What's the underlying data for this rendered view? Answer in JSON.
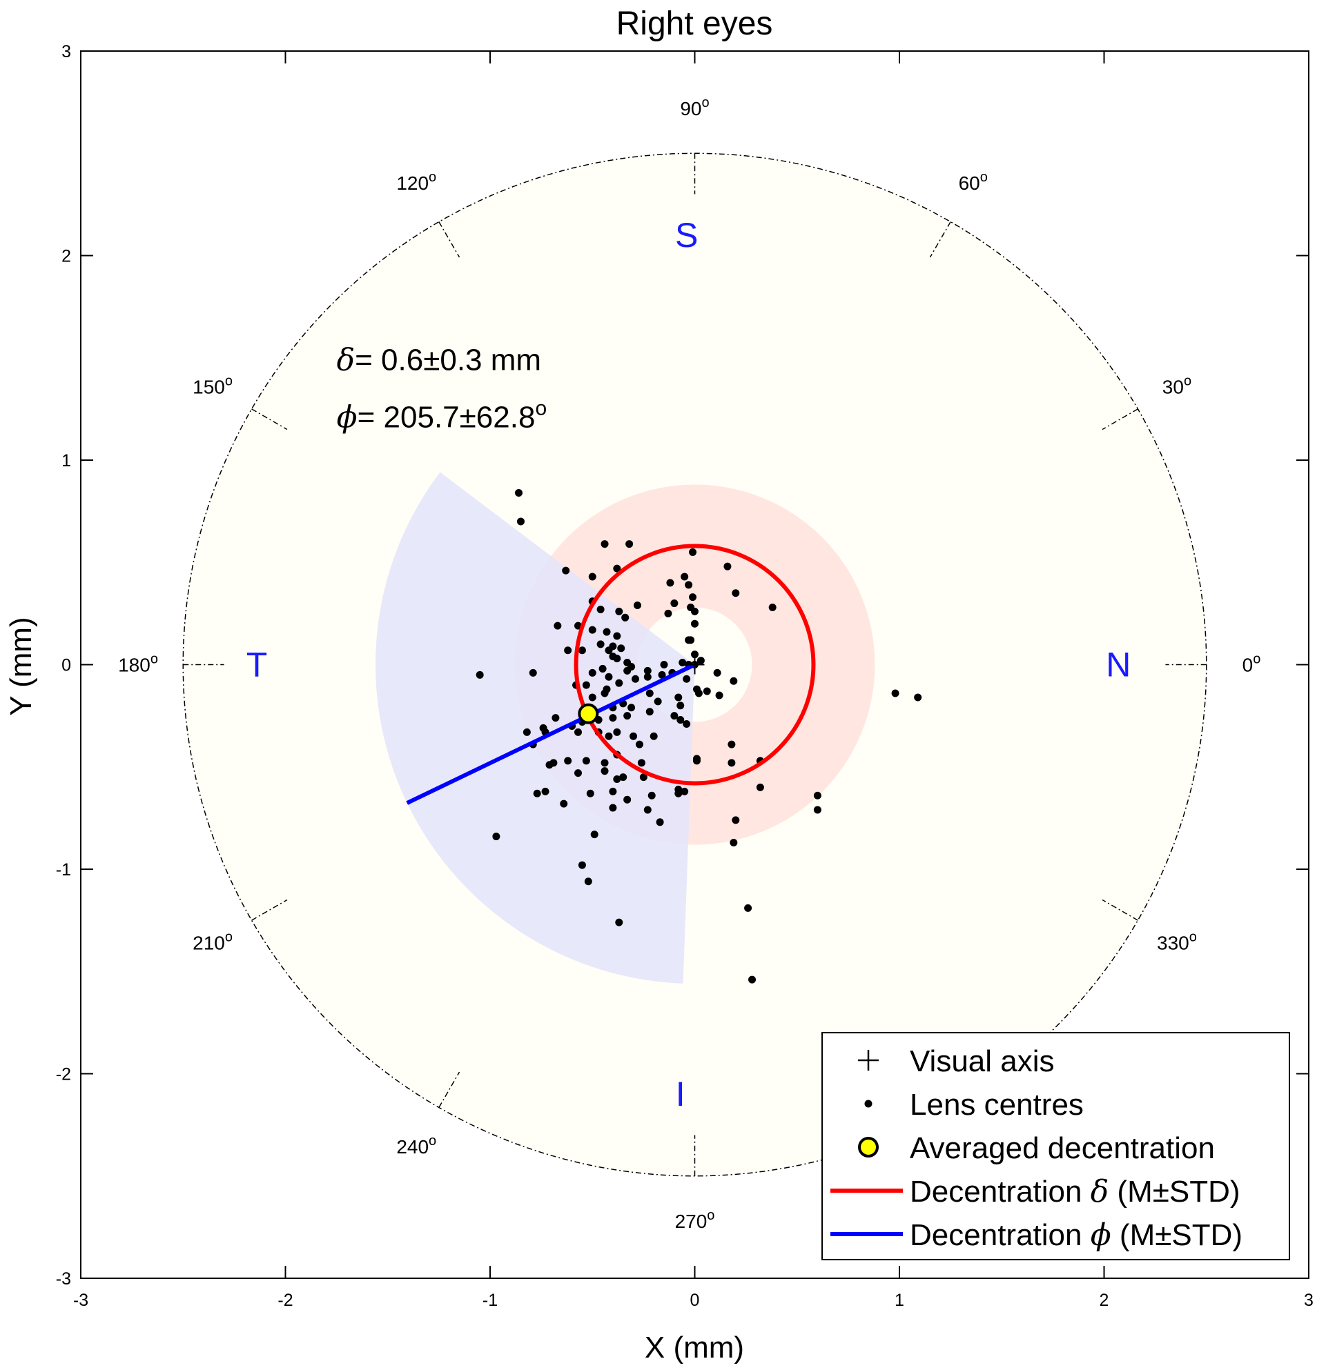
{
  "chart_data": {
    "type": "scatter",
    "title": "Right eyes",
    "xlabel": "X (mm)",
    "ylabel": "Y (mm)",
    "xlim": [
      -3,
      3
    ],
    "ylim": [
      -3,
      3
    ],
    "xticks": [
      -3,
      -2,
      -1,
      0,
      1,
      2,
      3
    ],
    "yticks": [
      -3,
      -2,
      -1,
      0,
      1,
      2,
      3
    ],
    "xtick_labels": [
      "-3",
      "-2",
      "-1",
      "0",
      "1",
      "2",
      "3"
    ],
    "ytick_labels": [
      "-3",
      "-2",
      "-1",
      "0",
      "1",
      "2",
      "3"
    ],
    "outer_circle_radius": 2.5,
    "angle_ticks": [
      {
        "angle": 0,
        "label": "0",
        "sup": "o"
      },
      {
        "angle": 30,
        "label": "30",
        "sup": "o"
      },
      {
        "angle": 60,
        "label": "60",
        "sup": "o"
      },
      {
        "angle": 90,
        "label": "90",
        "sup": "o"
      },
      {
        "angle": 120,
        "label": "120",
        "sup": "o"
      },
      {
        "angle": 150,
        "label": "150",
        "sup": "o"
      },
      {
        "angle": 180,
        "label": "180",
        "sup": "o"
      },
      {
        "angle": 210,
        "label": "210",
        "sup": "o"
      },
      {
        "angle": 240,
        "label": "240",
        "sup": "o"
      },
      {
        "angle": 270,
        "label": "270",
        "sup": "o"
      },
      {
        "angle": 330,
        "label": "330",
        "sup": "o"
      }
    ],
    "direction_labels": [
      {
        "label": "S",
        "x": -0.04,
        "y": 2.1
      },
      {
        "label": "N",
        "x": 2.07,
        "y": 0.0
      },
      {
        "label": "T",
        "x": -2.14,
        "y": 0.0
      },
      {
        "label": "I",
        "x": -0.07,
        "y": -2.1
      }
    ],
    "stats": {
      "delta_symbol": "δ",
      "delta_text": "= 0.6±0.3 mm",
      "phi_symbol": "ϕ",
      "phi_text": "= 205.7±62.8",
      "phi_sup": "o",
      "anchor_x": -1.75,
      "delta_y": 1.49,
      "phi_y": 1.21
    },
    "delta_mean": 0.58,
    "delta_std": 0.3,
    "phi_mean": 205.7,
    "phi_std": 62.8,
    "phi_band_radius": 1.56,
    "averaged_decentration": {
      "x": -0.52,
      "y": -0.24
    },
    "visual_axis": {
      "x": 0,
      "y": 0
    },
    "lens_centres": [
      [
        -0.86,
        0.84
      ],
      [
        -0.85,
        0.7
      ],
      [
        -0.44,
        0.59
      ],
      [
        -0.32,
        0.59
      ],
      [
        -0.63,
        0.46
      ],
      [
        -0.38,
        0.47
      ],
      [
        -0.5,
        0.43
      ],
      [
        -0.5,
        0.31
      ],
      [
        -0.46,
        0.27
      ],
      [
        -0.37,
        0.26
      ],
      [
        -0.34,
        0.23
      ],
      [
        -0.67,
        0.19
      ],
      [
        -0.57,
        0.19
      ],
      [
        -0.5,
        0.17
      ],
      [
        -0.43,
        0.16
      ],
      [
        -0.38,
        0.14
      ],
      [
        -0.46,
        0.1
      ],
      [
        -0.4,
        0.09
      ],
      [
        -0.42,
        0.07
      ],
      [
        -0.36,
        0.08
      ],
      [
        -0.55,
        0.07
      ],
      [
        -0.62,
        0.07
      ],
      [
        -0.4,
        0.04
      ],
      [
        -0.38,
        0.03
      ],
      [
        -0.33,
        0.01
      ],
      [
        -0.31,
        -0.01
      ],
      [
        -0.33,
        -0.03
      ],
      [
        -0.23,
        -0.03
      ],
      [
        -0.23,
        -0.06
      ],
      [
        -0.29,
        -0.07
      ],
      [
        -0.16,
        -0.05
      ],
      [
        -0.79,
        -0.04
      ],
      [
        -1.05,
        -0.05
      ],
      [
        -0.45,
        -0.02
      ],
      [
        -0.5,
        -0.04
      ],
      [
        -0.42,
        -0.06
      ],
      [
        -0.37,
        -0.09
      ],
      [
        -0.43,
        -0.12
      ],
      [
        -0.53,
        -0.1
      ],
      [
        -0.58,
        -0.1
      ],
      [
        -0.5,
        -0.16
      ],
      [
        -0.44,
        -0.14
      ],
      [
        -0.35,
        -0.19
      ],
      [
        -0.4,
        -0.21
      ],
      [
        -0.31,
        -0.21
      ],
      [
        -0.22,
        -0.14
      ],
      [
        -0.18,
        -0.18
      ],
      [
        -0.08,
        -0.16
      ],
      [
        -0.07,
        -0.2
      ],
      [
        -0.1,
        -0.25
      ],
      [
        -0.07,
        -0.27
      ],
      [
        -0.04,
        -0.29
      ],
      [
        -0.22,
        -0.23
      ],
      [
        -0.33,
        -0.25
      ],
      [
        -0.4,
        -0.26
      ],
      [
        -0.47,
        -0.27
      ],
      [
        -0.55,
        -0.28
      ],
      [
        -0.6,
        -0.3
      ],
      [
        -0.68,
        -0.26
      ],
      [
        -0.74,
        -0.31
      ],
      [
        -0.82,
        -0.33
      ],
      [
        -0.79,
        -0.39
      ],
      [
        -0.73,
        -0.33
      ],
      [
        -0.57,
        -0.33
      ],
      [
        -0.47,
        -0.33
      ],
      [
        -0.42,
        -0.35
      ],
      [
        -0.38,
        -0.33
      ],
      [
        -0.3,
        -0.35
      ],
      [
        -0.27,
        -0.39
      ],
      [
        -0.2,
        -0.35
      ],
      [
        -0.38,
        -0.44
      ],
      [
        -0.44,
        -0.48
      ],
      [
        -0.44,
        -0.52
      ],
      [
        -0.53,
        -0.47
      ],
      [
        -0.62,
        -0.47
      ],
      [
        -0.69,
        -0.48
      ],
      [
        -0.71,
        -0.49
      ],
      [
        -0.57,
        -0.53
      ],
      [
        -0.38,
        -0.56
      ],
      [
        -0.35,
        -0.55
      ],
      [
        -0.26,
        -0.48
      ],
      [
        -0.25,
        -0.55
      ],
      [
        -0.77,
        -0.63
      ],
      [
        -0.73,
        -0.62
      ],
      [
        -0.64,
        -0.68
      ],
      [
        -0.51,
        -0.63
      ],
      [
        -0.4,
        -0.62
      ],
      [
        -0.4,
        -0.7
      ],
      [
        -0.33,
        -0.66
      ],
      [
        -0.23,
        -0.71
      ],
      [
        -0.17,
        -0.77
      ],
      [
        -0.21,
        -0.64
      ],
      [
        -0.08,
        -0.61
      ],
      [
        -0.08,
        -0.63
      ],
      [
        -0.05,
        -0.62
      ],
      [
        -0.97,
        -0.84
      ],
      [
        -0.49,
        -0.83
      ],
      [
        -0.55,
        -0.98
      ],
      [
        -0.52,
        -1.06
      ],
      [
        -0.37,
        -1.26
      ],
      [
        0.01,
        -0.46
      ],
      [
        0.01,
        -0.47
      ],
      [
        0.18,
        -0.39
      ],
      [
        0.18,
        -0.48
      ],
      [
        0.32,
        -0.47
      ],
      [
        0.32,
        -0.6
      ],
      [
        0.2,
        -0.76
      ],
      [
        0.19,
        -0.87
      ],
      [
        0.6,
        -0.64
      ],
      [
        0.6,
        -0.71
      ],
      [
        0.26,
        -1.19
      ],
      [
        0.28,
        -1.54
      ],
      [
        0.98,
        -0.14
      ],
      [
        1.09,
        -0.16
      ],
      [
        -0.15,
        0.0
      ],
      [
        -0.11,
        -0.04
      ],
      [
        -0.04,
        -0.07
      ],
      [
        0.0,
        0.0
      ],
      [
        0.03,
        0.02
      ],
      [
        0.11,
        -0.04
      ],
      [
        0.01,
        -0.12
      ],
      [
        0.02,
        -0.14
      ],
      [
        0.06,
        -0.13
      ],
      [
        0.12,
        -0.15
      ],
      [
        0.19,
        -0.08
      ],
      [
        -0.03,
        0.0
      ],
      [
        -0.06,
        0.01
      ],
      [
        0.0,
        0.2
      ],
      [
        0.0,
        0.26
      ],
      [
        -0.02,
        0.28
      ],
      [
        -0.01,
        0.33
      ],
      [
        -0.03,
        0.39
      ],
      [
        -0.05,
        0.43
      ],
      [
        -0.1,
        0.3
      ],
      [
        -0.12,
        0.4
      ],
      [
        -0.13,
        0.25
      ],
      [
        -0.02,
        0.12
      ],
      [
        -0.03,
        0.12
      ],
      [
        0.0,
        0.05
      ],
      [
        -0.01,
        0.55
      ],
      [
        0.16,
        0.48
      ],
      [
        0.2,
        0.35
      ],
      [
        0.38,
        0.28
      ],
      [
        -0.28,
        0.29
      ]
    ]
  },
  "legend": {
    "items": [
      {
        "key": "visual_axis",
        "label": "Visual axis"
      },
      {
        "key": "lens_centres",
        "label": "Lens centres"
      },
      {
        "key": "averaged",
        "label": "Averaged decentration"
      },
      {
        "key": "delta",
        "label_pre": "Decentration ",
        "symbol": "δ",
        "label_post": " (M±STD)"
      },
      {
        "key": "phi",
        "label_pre": "Decentration ",
        "symbol": "ϕ",
        "label_post": " (M±STD)"
      }
    ]
  },
  "colors": {
    "outer_fill": "#fffff7",
    "delta_band": "#ffe2dc",
    "phi_band": "#e4e4fb",
    "delta_line": "#ff0000",
    "phi_line": "#0000ff",
    "dots": "#000000",
    "average_fill": "#ffff00",
    "direction_text": "#1a1aff"
  }
}
